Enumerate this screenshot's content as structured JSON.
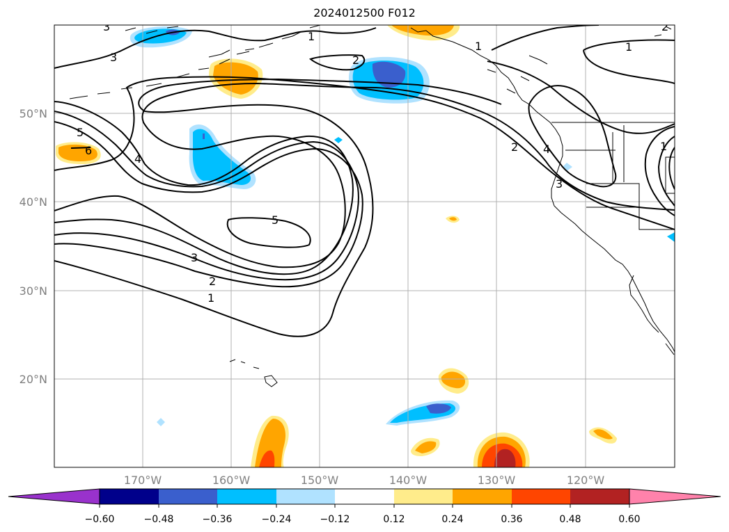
{
  "title": "2024012500 F012",
  "map": {
    "lat_labels": [
      "50°N",
      "40°N",
      "30°N",
      "20°N"
    ],
    "lon_labels": [
      "170°W",
      "160°W",
      "150°W",
      "140°W",
      "130°W",
      "120°W"
    ],
    "contour_labels": [
      "1",
      "2",
      "3",
      "4",
      "5",
      "6",
      "5",
      "3",
      "2",
      "1",
      "2",
      "1",
      "1",
      "2",
      "3",
      "1",
      "4",
      "3"
    ]
  },
  "colorbar": {
    "tick_labels": [
      "−0.60",
      "−0.48",
      "−0.36",
      "−0.24",
      "−0.12",
      "0.12",
      "0.24",
      "0.36",
      "0.48",
      "0.60"
    ],
    "colors": [
      "#9932cc",
      "#00008b",
      "#3a5fcd",
      "#00bfff",
      "#b0e2ff",
      "#ffffff",
      "#ffec8b",
      "#ffa500",
      "#ff4500",
      "#b22222",
      "#ff82ab"
    ]
  }
}
